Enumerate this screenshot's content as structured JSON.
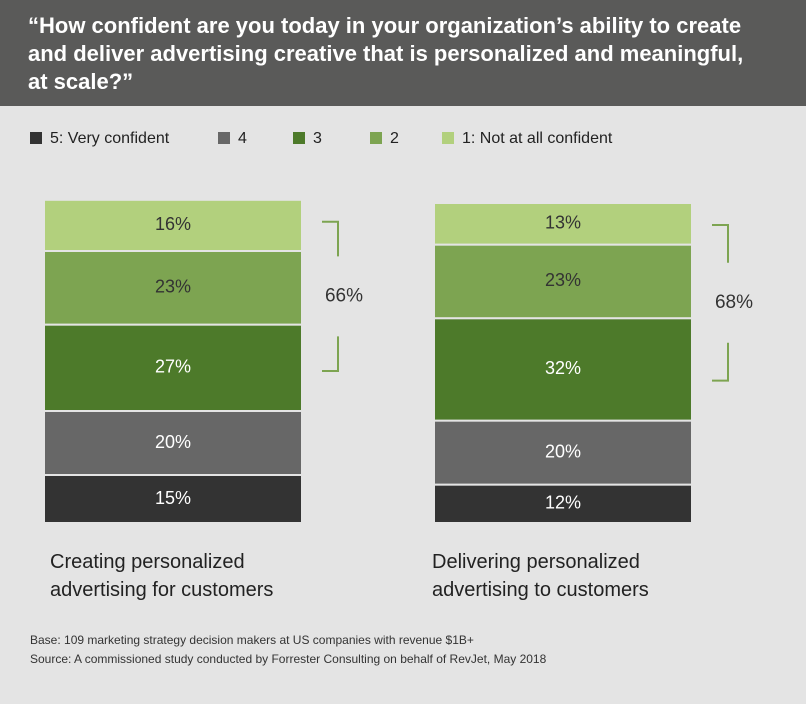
{
  "chart_data": {
    "type": "stacked-bar",
    "title": "“How confident are you today in your organization’s ability to create and deliver advertising creative that is personalized and meaningful, at scale?”",
    "categories": [
      "Creating personalized advertising for customers",
      "Delivering personalized advertising to customers"
    ],
    "series": [
      {
        "name": "5: Very confident",
        "color": "#333333",
        "values": [
          15,
          12
        ],
        "value_labels": [
          "15%",
          "12%"
        ]
      },
      {
        "name": "4",
        "color": "#676767",
        "values": [
          20,
          20
        ],
        "value_labels": [
          "20%",
          "20%"
        ]
      },
      {
        "name": "3",
        "color": "#4d7a2a",
        "values": [
          27,
          32
        ],
        "value_labels": [
          "27%",
          "32%"
        ]
      },
      {
        "name": "2",
        "color": "#7da451",
        "values": [
          23,
          23
        ],
        "value_labels": [
          "23%",
          "23%"
        ]
      },
      {
        "name": "1: Not at all confident",
        "color": "#b2d07d",
        "values": [
          16,
          13
        ],
        "value_labels": [
          "16%",
          "13%"
        ]
      }
    ],
    "ylim": [
      0,
      100
    ],
    "bracket_totals": {
      "values": [
        66,
        68
      ],
      "value_labels": [
        "66%",
        "68%"
      ]
    },
    "footnotes": [
      "Base: 109 marketing strategy decision makers at US companies with revenue $1B+",
      "Source: A commissioned study conducted by Forrester Consulting on behalf of RevJet, May 2018"
    ]
  }
}
